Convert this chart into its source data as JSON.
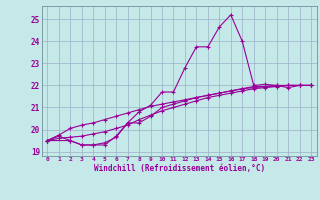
{
  "xlabel": "Windchill (Refroidissement éolien,°C)",
  "bg_color": "#c5e8e8",
  "line_color": "#990099",
  "grid_color": "#9ab0c8",
  "xlim": [
    -0.5,
    23.5
  ],
  "ylim": [
    18.8,
    25.6
  ],
  "yticks": [
    19,
    20,
    21,
    22,
    23,
    24,
    25
  ],
  "xticks": [
    0,
    1,
    2,
    3,
    4,
    5,
    6,
    7,
    8,
    9,
    10,
    11,
    12,
    13,
    14,
    15,
    16,
    17,
    18,
    19,
    20,
    21,
    22,
    23
  ],
  "curve1_x": [
    0,
    1,
    2,
    3,
    4,
    5,
    6,
    7,
    8,
    9,
    10,
    11,
    12,
    13,
    14,
    15,
    16,
    17,
    18,
    19,
    20,
    21,
    22,
    23
  ],
  "curve1_y": [
    19.5,
    19.7,
    19.5,
    19.3,
    19.3,
    19.3,
    19.7,
    20.3,
    20.8,
    21.1,
    21.7,
    21.7,
    22.8,
    23.75,
    23.75,
    24.65,
    25.2,
    24.0,
    22.0,
    22.05,
    22.0,
    21.9,
    22.0,
    22.0
  ],
  "curve2_x": [
    0,
    1,
    2,
    3,
    4,
    5,
    6,
    7,
    8,
    9,
    10,
    11,
    12,
    13,
    14,
    15,
    16,
    17,
    18,
    19,
    20,
    21,
    22,
    23
  ],
  "curve2_y": [
    19.5,
    19.75,
    20.05,
    20.2,
    20.3,
    20.45,
    20.6,
    20.75,
    20.9,
    21.05,
    21.15,
    21.25,
    21.35,
    21.45,
    21.55,
    21.65,
    21.75,
    21.85,
    21.95,
    21.95,
    22.0,
    22.0,
    22.0,
    22.0
  ],
  "curve3_x": [
    0,
    1,
    2,
    3,
    4,
    5,
    6,
    7,
    8,
    9,
    10,
    11,
    12,
    13,
    14,
    15,
    16,
    17,
    18,
    19,
    20,
    21,
    22,
    23
  ],
  "curve3_y": [
    19.5,
    19.6,
    19.65,
    19.7,
    19.8,
    19.9,
    20.05,
    20.2,
    20.45,
    20.65,
    20.85,
    21.0,
    21.15,
    21.3,
    21.45,
    21.55,
    21.65,
    21.75,
    21.85,
    21.9,
    21.95,
    22.0,
    22.0,
    22.0
  ],
  "curve4_x": [
    0,
    2,
    3,
    4,
    5,
    6,
    7,
    8,
    9,
    10,
    11,
    12,
    13,
    14,
    15,
    16,
    17,
    18,
    19,
    20,
    21,
    22,
    23
  ],
  "curve4_y": [
    19.5,
    19.5,
    19.3,
    19.3,
    19.4,
    19.65,
    20.3,
    20.3,
    20.6,
    21.0,
    21.15,
    21.3,
    21.45,
    21.55,
    21.65,
    21.75,
    21.85,
    21.9,
    21.95,
    21.98,
    22.0,
    22.0,
    22.0
  ]
}
